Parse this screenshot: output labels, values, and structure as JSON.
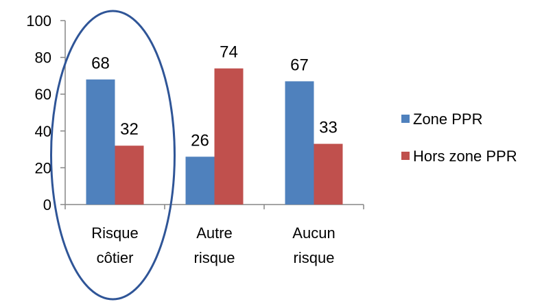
{
  "chart_data": {
    "type": "bar",
    "categories": [
      [
        "Risque",
        "côtier"
      ],
      [
        "Autre",
        "risque"
      ],
      [
        "Aucun",
        "risque"
      ]
    ],
    "series": [
      {
        "name": "Zone PPR",
        "values": [
          68,
          26,
          67
        ],
        "color": "#4F81BD"
      },
      {
        "name": "Hors zone PPR",
        "values": [
          32,
          74,
          33
        ],
        "color": "#C0504D"
      }
    ],
    "ylim": [
      0,
      100
    ],
    "yticks": [
      0,
      20,
      40,
      60,
      80,
      100
    ],
    "data_labels": true,
    "gridlines": false,
    "legend_position": "right",
    "annotation": {
      "type": "ellipse",
      "highlights_category": "Risque côtier",
      "color": "#2F5597"
    }
  }
}
